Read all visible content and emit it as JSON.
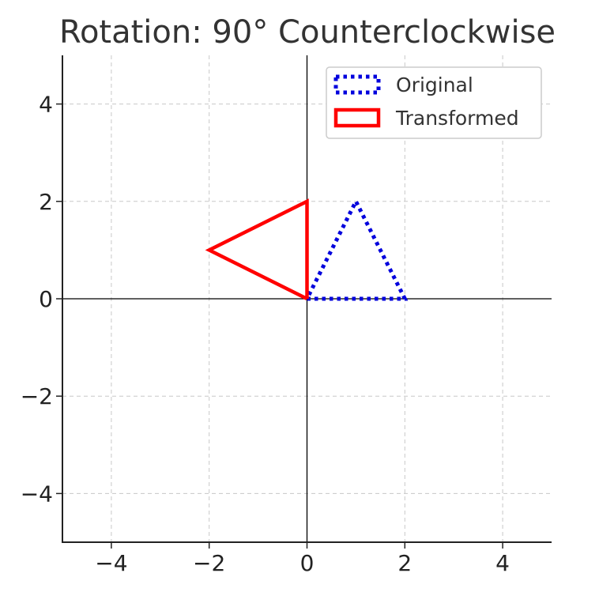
{
  "chart_data": {
    "type": "line",
    "title": "Rotation: 90° Counterclockwise",
    "xlabel": "",
    "ylabel": "",
    "xlim": [
      -5,
      5
    ],
    "ylim": [
      -5,
      5
    ],
    "grid": true,
    "legend_position": "top-right",
    "x_ticks": [
      -4,
      -2,
      0,
      2,
      4
    ],
    "y_ticks": [
      -4,
      -2,
      0,
      2,
      4
    ],
    "x_tick_labels": [
      "−4",
      "−2",
      "0",
      "2",
      "4"
    ],
    "y_tick_labels": [
      "−4",
      "−2",
      "0",
      "2",
      "4"
    ],
    "series": [
      {
        "name": "Original",
        "color": "#0000dd",
        "style": "dotted",
        "points": [
          [
            0,
            0
          ],
          [
            2,
            0
          ],
          [
            1,
            2
          ],
          [
            0,
            0
          ]
        ]
      },
      {
        "name": "Transformed",
        "color": "#ff0000",
        "style": "solid",
        "points": [
          [
            0,
            0
          ],
          [
            0,
            2
          ],
          [
            -2,
            1
          ],
          [
            0,
            0
          ]
        ]
      }
    ]
  }
}
